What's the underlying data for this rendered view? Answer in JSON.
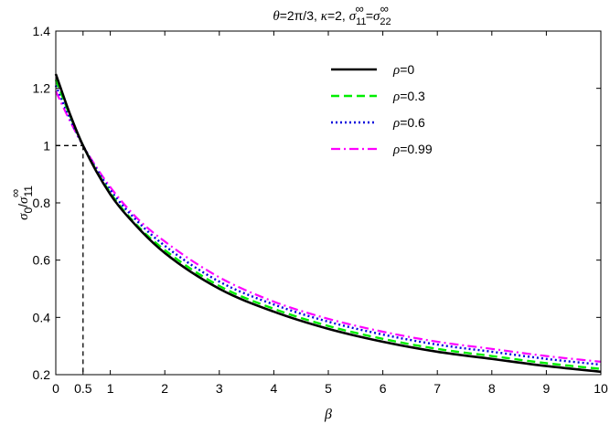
{
  "chart_data": {
    "type": "line",
    "title_parts": {
      "theta_sym": "θ",
      "theta_eq": "=2π/3,  ",
      "kappa_sym": "κ",
      "kappa_eq": "=2,  ",
      "sig1": "σ",
      "sig1_sub": "11",
      "sig1_sup": "∞",
      "eq": "=",
      "sig2": "σ",
      "sig2_sub": "22",
      "sig2_sup": "∞"
    },
    "xlabel": "β",
    "ylabel_parts": {
      "sig": "σ",
      "sub0": "0",
      "slash": "/",
      "sig2": "σ",
      "sub11": "11",
      "sup": "∞"
    },
    "xlim": [
      0,
      10
    ],
    "ylim": [
      0.2,
      1.4
    ],
    "xticks": [
      0,
      0.5,
      1,
      2,
      3,
      4,
      5,
      6,
      7,
      8,
      9,
      10
    ],
    "xtick_labels": [
      "0",
      "0.5",
      "1",
      "2",
      "3",
      "4",
      "5",
      "6",
      "7",
      "8",
      "9",
      "10"
    ],
    "yticks": [
      0.2,
      0.4,
      0.6,
      0.8,
      1.0,
      1.2,
      1.4
    ],
    "ytick_labels": [
      "0.2",
      "0.4",
      "0.6",
      "0.8",
      "1",
      "1.2",
      "1.4"
    ],
    "grid": false,
    "legend_position": "top-right",
    "reference_point": {
      "x": 0.5,
      "y": 1.0
    },
    "series": [
      {
        "name": "ρ=0",
        "rho": "0",
        "color": "#000000",
        "dash": "solid",
        "x": [
          0,
          0.25,
          0.5,
          1,
          1.5,
          2,
          3,
          4,
          5,
          6,
          7,
          8,
          9,
          10
        ],
        "y": [
          1.25,
          1.115,
          1.0,
          0.83,
          0.715,
          0.625,
          0.5,
          0.42,
          0.36,
          0.315,
          0.28,
          0.255,
          0.23,
          0.21
        ]
      },
      {
        "name": "ρ=0.3",
        "rho": "0.3",
        "color": "#00ee00",
        "dash": "dashed",
        "x": [
          0,
          0.25,
          0.5,
          1,
          1.5,
          2,
          3,
          4,
          5,
          6,
          7,
          8,
          9,
          10
        ],
        "y": [
          1.23,
          1.11,
          1.0,
          0.835,
          0.72,
          0.635,
          0.51,
          0.43,
          0.37,
          0.325,
          0.29,
          0.265,
          0.24,
          0.22
        ]
      },
      {
        "name": "ρ=0.6",
        "rho": "0.6",
        "color": "#0000dd",
        "dash": "dotted",
        "x": [
          0,
          0.25,
          0.5,
          1,
          1.5,
          2,
          3,
          4,
          5,
          6,
          7,
          8,
          9,
          10
        ],
        "y": [
          1.21,
          1.1,
          1.0,
          0.845,
          0.735,
          0.65,
          0.525,
          0.445,
          0.385,
          0.34,
          0.305,
          0.28,
          0.255,
          0.235
        ]
      },
      {
        "name": "ρ=0.99",
        "rho": "0.99",
        "color": "#ff00ff",
        "dash": "dashdot",
        "x": [
          0,
          0.25,
          0.5,
          1,
          1.5,
          2,
          3,
          4,
          5,
          6,
          7,
          8,
          9,
          10
        ],
        "y": [
          1.19,
          1.09,
          1.0,
          0.855,
          0.745,
          0.665,
          0.54,
          0.455,
          0.395,
          0.35,
          0.315,
          0.29,
          0.265,
          0.245
        ]
      }
    ]
  }
}
